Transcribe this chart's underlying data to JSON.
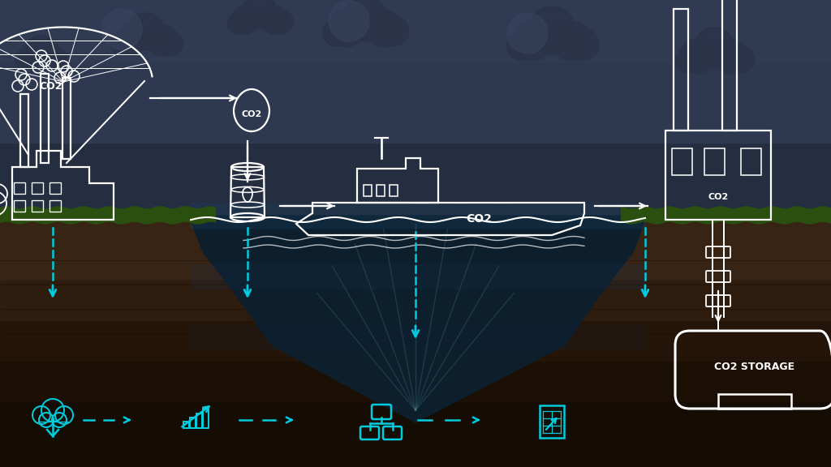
{
  "white": "#ffffff",
  "cyan": "#00ccdd",
  "sky_dark": "#1e2535",
  "sky_mid": "#2a3348",
  "ground_brown": "#3a2310",
  "ground_dark": "#1e1008",
  "grass": "#2a5010",
  "ocean_dark": "#0d1f2d",
  "ocean_mid": "#142535",
  "storage_label": "CO2 STORAGE",
  "co2_label": "CO2",
  "lw_main": 1.6
}
